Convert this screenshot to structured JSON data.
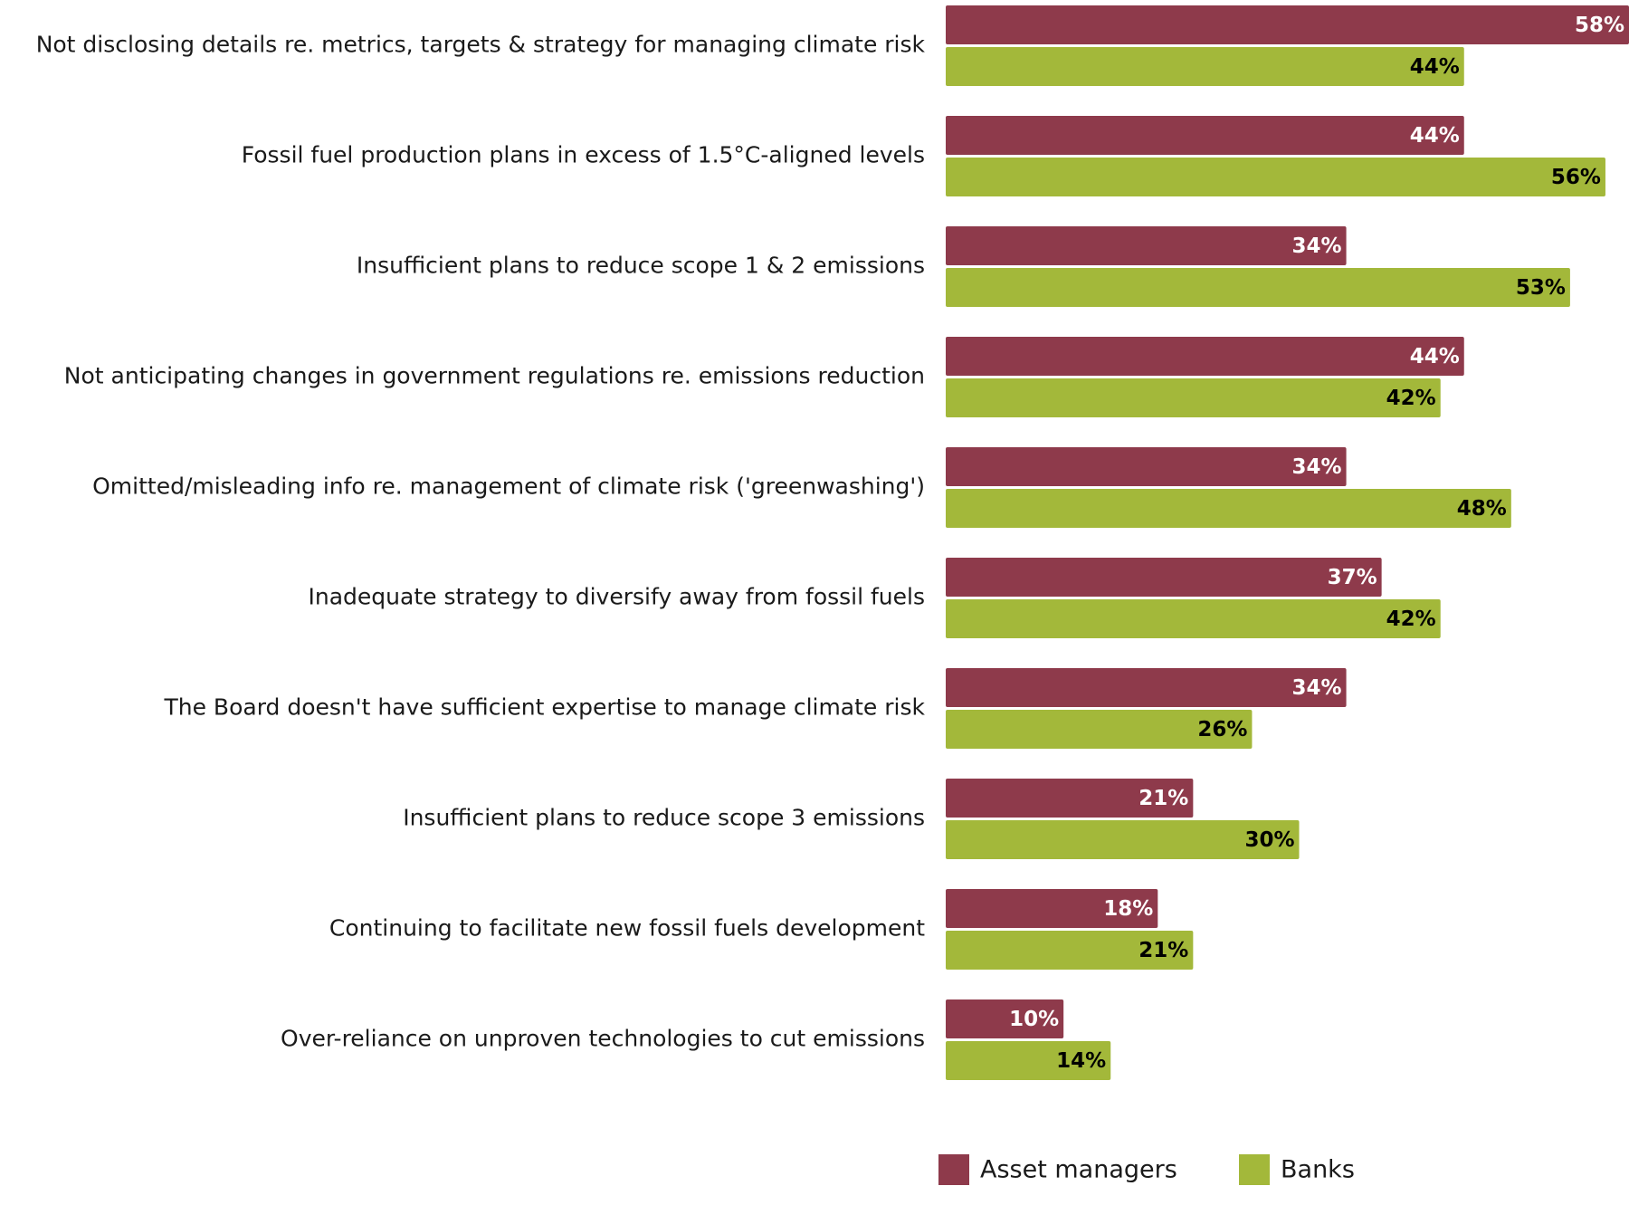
{
  "chart_data": {
    "type": "bar",
    "orientation": "horizontal",
    "categories": [
      "Not disclosing details re. metrics, targets & strategy for managing climate risk",
      "Fossil fuel production plans in excess of 1.5°C-aligned levels",
      "Insufficient plans to reduce scope 1 & 2 emissions",
      "Not anticipating changes in government regulations re. emissions reduction",
      "Omitted/misleading info re. management of climate risk ('greenwashing')",
      "Inadequate strategy to diversify away from fossil fuels",
      "The Board doesn't have sufficient expertise to manage climate risk",
      "Insufficient plans to reduce scope 3 emissions",
      "Continuing to facilitate new fossil fuels development",
      "Over-reliance on unproven technologies to cut emissions"
    ],
    "series": [
      {
        "name": "Asset managers",
        "color": "#8E3A4B",
        "label_color": "#ffffff",
        "values": [
          58,
          44,
          34,
          44,
          34,
          37,
          34,
          21,
          18,
          10
        ],
        "labels": [
          "58%",
          "44%",
          "34%",
          "44%",
          "34%",
          "37%",
          "34%",
          "21%",
          "18%",
          "10%"
        ]
      },
      {
        "name": "Banks",
        "color": "#A3B83A",
        "label_color": "#000000",
        "values": [
          44,
          56,
          53,
          42,
          48,
          42,
          26,
          30,
          21,
          14
        ],
        "labels": [
          "44%",
          "56%",
          "53%",
          "42%",
          "48%",
          "42%",
          "26%",
          "30%",
          "21%",
          "14%"
        ]
      }
    ],
    "xlim": [
      0,
      58
    ],
    "grid": false,
    "legend_position": "bottom"
  }
}
